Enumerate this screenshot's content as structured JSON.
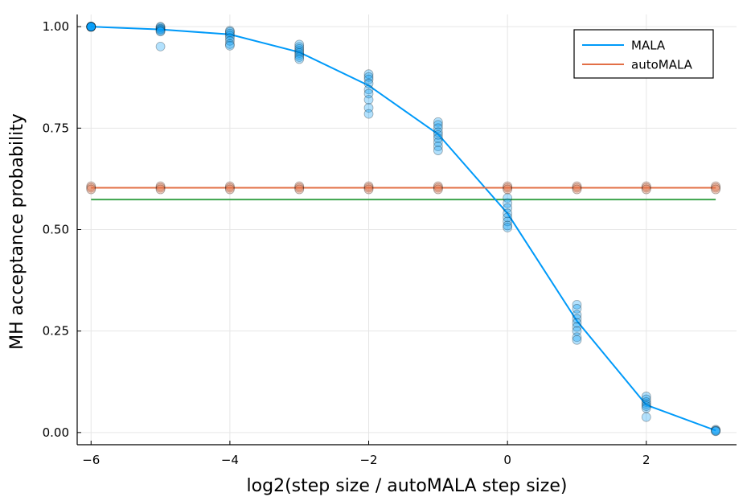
{
  "chart_data": {
    "type": "scatter",
    "xlabel": "log2(step size / autoMALA step size)",
    "ylabel": "MH acceptance probability",
    "xlim": [
      -6.2,
      3.3
    ],
    "ylim": [
      -0.03,
      1.03
    ],
    "xticks": [
      -6,
      -4,
      -2,
      0,
      2
    ],
    "xtick_labels": [
      "−6",
      "−4",
      "−2",
      "0",
      "2"
    ],
    "yticks": [
      0,
      0.25,
      0.5,
      0.75,
      1.0
    ],
    "ytick_labels": [
      "0.00",
      "0.25",
      "0.50",
      "0.75",
      "1.00"
    ],
    "grid": true,
    "legend_position": "top-right",
    "series": [
      {
        "name": "MALA",
        "color": "#009af9",
        "mean_line": {
          "x": [
            -6,
            -5,
            -4,
            -3,
            -2,
            -1,
            0,
            1,
            2,
            3
          ],
          "y": [
            1.0,
            0.993,
            0.981,
            0.937,
            0.855,
            0.735,
            0.54,
            0.275,
            0.068,
            0.005
          ]
        },
        "points": [
          {
            "x": -6,
            "y": [
              1.0,
              1.0,
              1.0,
              1.0,
              1.0,
              1.0,
              0.999,
              1.0
            ]
          },
          {
            "x": -5,
            "y": [
              1.0,
              0.998,
              0.995,
              0.993,
              0.99,
              0.988,
              0.951
            ]
          },
          {
            "x": -4,
            "y": [
              0.99,
              0.987,
              0.983,
              0.978,
              0.972,
              0.965,
              0.957,
              0.953
            ]
          },
          {
            "x": -3,
            "y": [
              0.956,
              0.95,
              0.945,
              0.94,
              0.935,
              0.93,
              0.925,
              0.92
            ]
          },
          {
            "x": -2,
            "y": [
              0.883,
              0.876,
              0.87,
              0.86,
              0.845,
              0.835,
              0.82,
              0.8,
              0.785
            ]
          },
          {
            "x": -1,
            "y": [
              0.765,
              0.758,
              0.75,
              0.74,
              0.733,
              0.725,
              0.715,
              0.705,
              0.695
            ]
          },
          {
            "x": 0,
            "y": [
              0.578,
              0.565,
              0.553,
              0.54,
              0.53,
              0.52,
              0.51,
              0.505
            ]
          },
          {
            "x": 1,
            "y": [
              0.315,
              0.305,
              0.29,
              0.28,
              0.27,
              0.26,
              0.25,
              0.235,
              0.228
            ]
          },
          {
            "x": 2,
            "y": [
              0.089,
              0.082,
              0.075,
              0.07,
              0.065,
              0.06,
              0.038
            ]
          },
          {
            "x": 3,
            "y": [
              0.007,
              0.005,
              0.004,
              0.003
            ]
          }
        ]
      },
      {
        "name": "autoMALA",
        "color": "#e26f46",
        "mean_line": {
          "x": [
            -6,
            3
          ],
          "y": [
            0.603,
            0.603
          ]
        },
        "points": [
          {
            "x": -6,
            "y": [
              0.607,
              0.603,
              0.599
            ]
          },
          {
            "x": -5,
            "y": [
              0.607,
              0.603,
              0.599
            ]
          },
          {
            "x": -4,
            "y": [
              0.607,
              0.603,
              0.599
            ]
          },
          {
            "x": -3,
            "y": [
              0.607,
              0.603,
              0.599
            ]
          },
          {
            "x": -2,
            "y": [
              0.607,
              0.603,
              0.599
            ]
          },
          {
            "x": -1,
            "y": [
              0.607,
              0.603,
              0.599
            ]
          },
          {
            "x": 0,
            "y": [
              0.607,
              0.603,
              0.599
            ]
          },
          {
            "x": 1,
            "y": [
              0.607,
              0.603,
              0.599
            ]
          },
          {
            "x": 2,
            "y": [
              0.607,
              0.603,
              0.599
            ]
          },
          {
            "x": 3,
            "y": [
              0.607,
              0.603,
              0.599
            ]
          }
        ]
      }
    ],
    "reference_line": {
      "color": "#3da44d",
      "y": 0.574,
      "x": [
        -6,
        3
      ]
    }
  }
}
